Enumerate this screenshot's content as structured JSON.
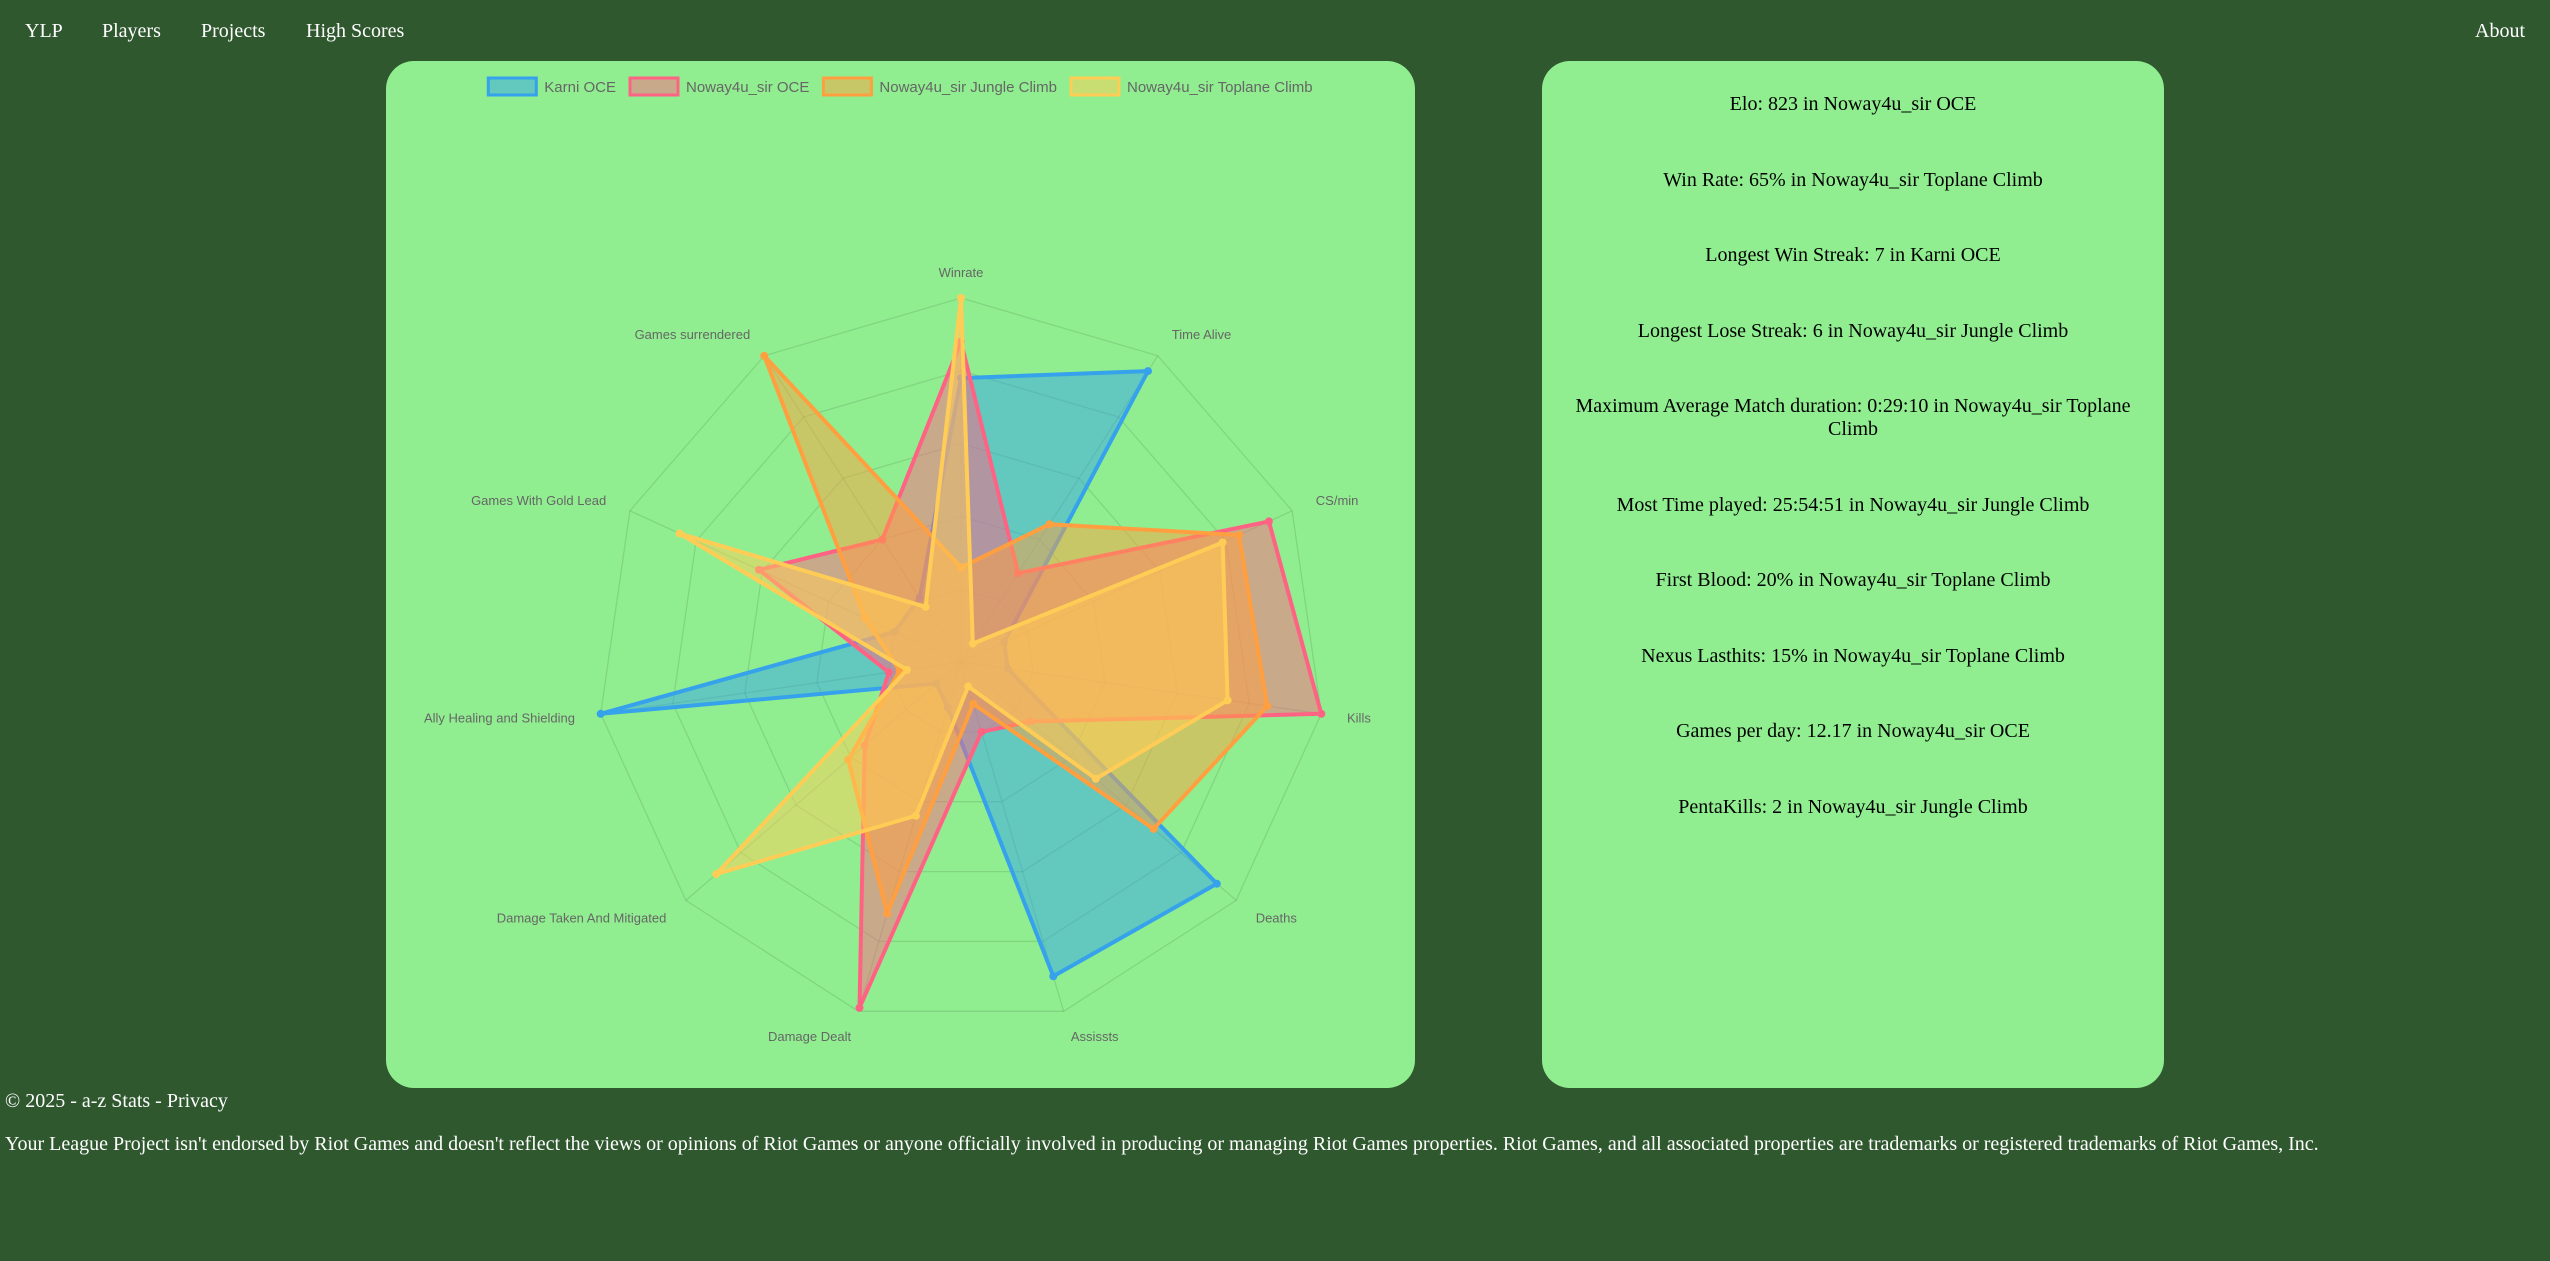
{
  "nav": {
    "brand": "YLP",
    "items": [
      "Players",
      "Projects",
      "High Scores"
    ],
    "about": "About"
  },
  "chart_data": {
    "type": "radar",
    "axes": [
      "Winrate",
      "Time Alive",
      "CS/min",
      "Kills",
      "Deaths",
      "Assissts",
      "Damage Dealt",
      "Damage Taken And Mitigated",
      "Ally Healing and Shielding",
      "Games With Gold Lead",
      "Games surrendered"
    ],
    "rmax": 1.0,
    "grid_levels": 5,
    "legend_position": "top",
    "series": [
      {
        "name": "Karni OCE",
        "color": "#36a2eb",
        "fill": "rgba(54,162,235,0.5)",
        "values": [
          0.78,
          0.95,
          0.13,
          0.13,
          0.93,
          0.9,
          0.13,
          0.09,
          1.0,
          0.2,
          0.21
        ]
      },
      {
        "name": "Noway4u_sir OCE",
        "color": "#ff6384",
        "fill": "rgba(255,99,132,0.5)",
        "values": [
          0.88,
          0.29,
          0.93,
          1.0,
          0.25,
          0.2,
          0.99,
          0.35,
          0.2,
          0.61,
          0.4
        ]
      },
      {
        "name": "Noway4u_sir Jungle Climb",
        "color": "#ff9f40",
        "fill": "rgba(255,159,64,0.5)",
        "values": [
          0.26,
          0.45,
          0.84,
          0.85,
          0.7,
          0.12,
          0.72,
          0.41,
          0.17,
          0.29,
          1.0
        ]
      },
      {
        "name": "Noway4u_sir Toplane Climb",
        "color": "#ffcd56",
        "fill": "rgba(255,205,86,0.5)",
        "values": [
          1.0,
          0.06,
          0.79,
          0.74,
          0.49,
          0.07,
          0.44,
          0.89,
          0.15,
          0.85,
          0.18
        ]
      }
    ]
  },
  "stats": [
    "Elo: 823 in Noway4u_sir OCE",
    "Win Rate: 65% in Noway4u_sir Toplane Climb",
    "Longest Win Streak: 7 in Karni OCE",
    "Longest Lose Streak: 6 in Noway4u_sir Jungle Climb",
    "Maximum Average Match duration: 0:29:10 in Noway4u_sir Toplane Climb",
    "Most Time played: 25:54:51 in Noway4u_sir Jungle Climb",
    "First Blood: 20% in Noway4u_sir Toplane Climb",
    "Nexus Lasthits: 15% in Noway4u_sir Toplane Climb",
    "Games per day: 12.17 in Noway4u_sir OCE",
    "PentaKills: 2 in Noway4u_sir Jungle Climb"
  ],
  "footer": {
    "copyright": "© 2025 - a-z Stats - ",
    "privacy": "Privacy",
    "disclaimer": "Your League Project isn't endorsed by Riot Games and doesn't reflect the views or opinions of Riot Games or anyone officially involved in producing or managing Riot Games properties. Riot Games, and all associated properties are trademarks or registered trademarks of Riot Games, Inc."
  }
}
